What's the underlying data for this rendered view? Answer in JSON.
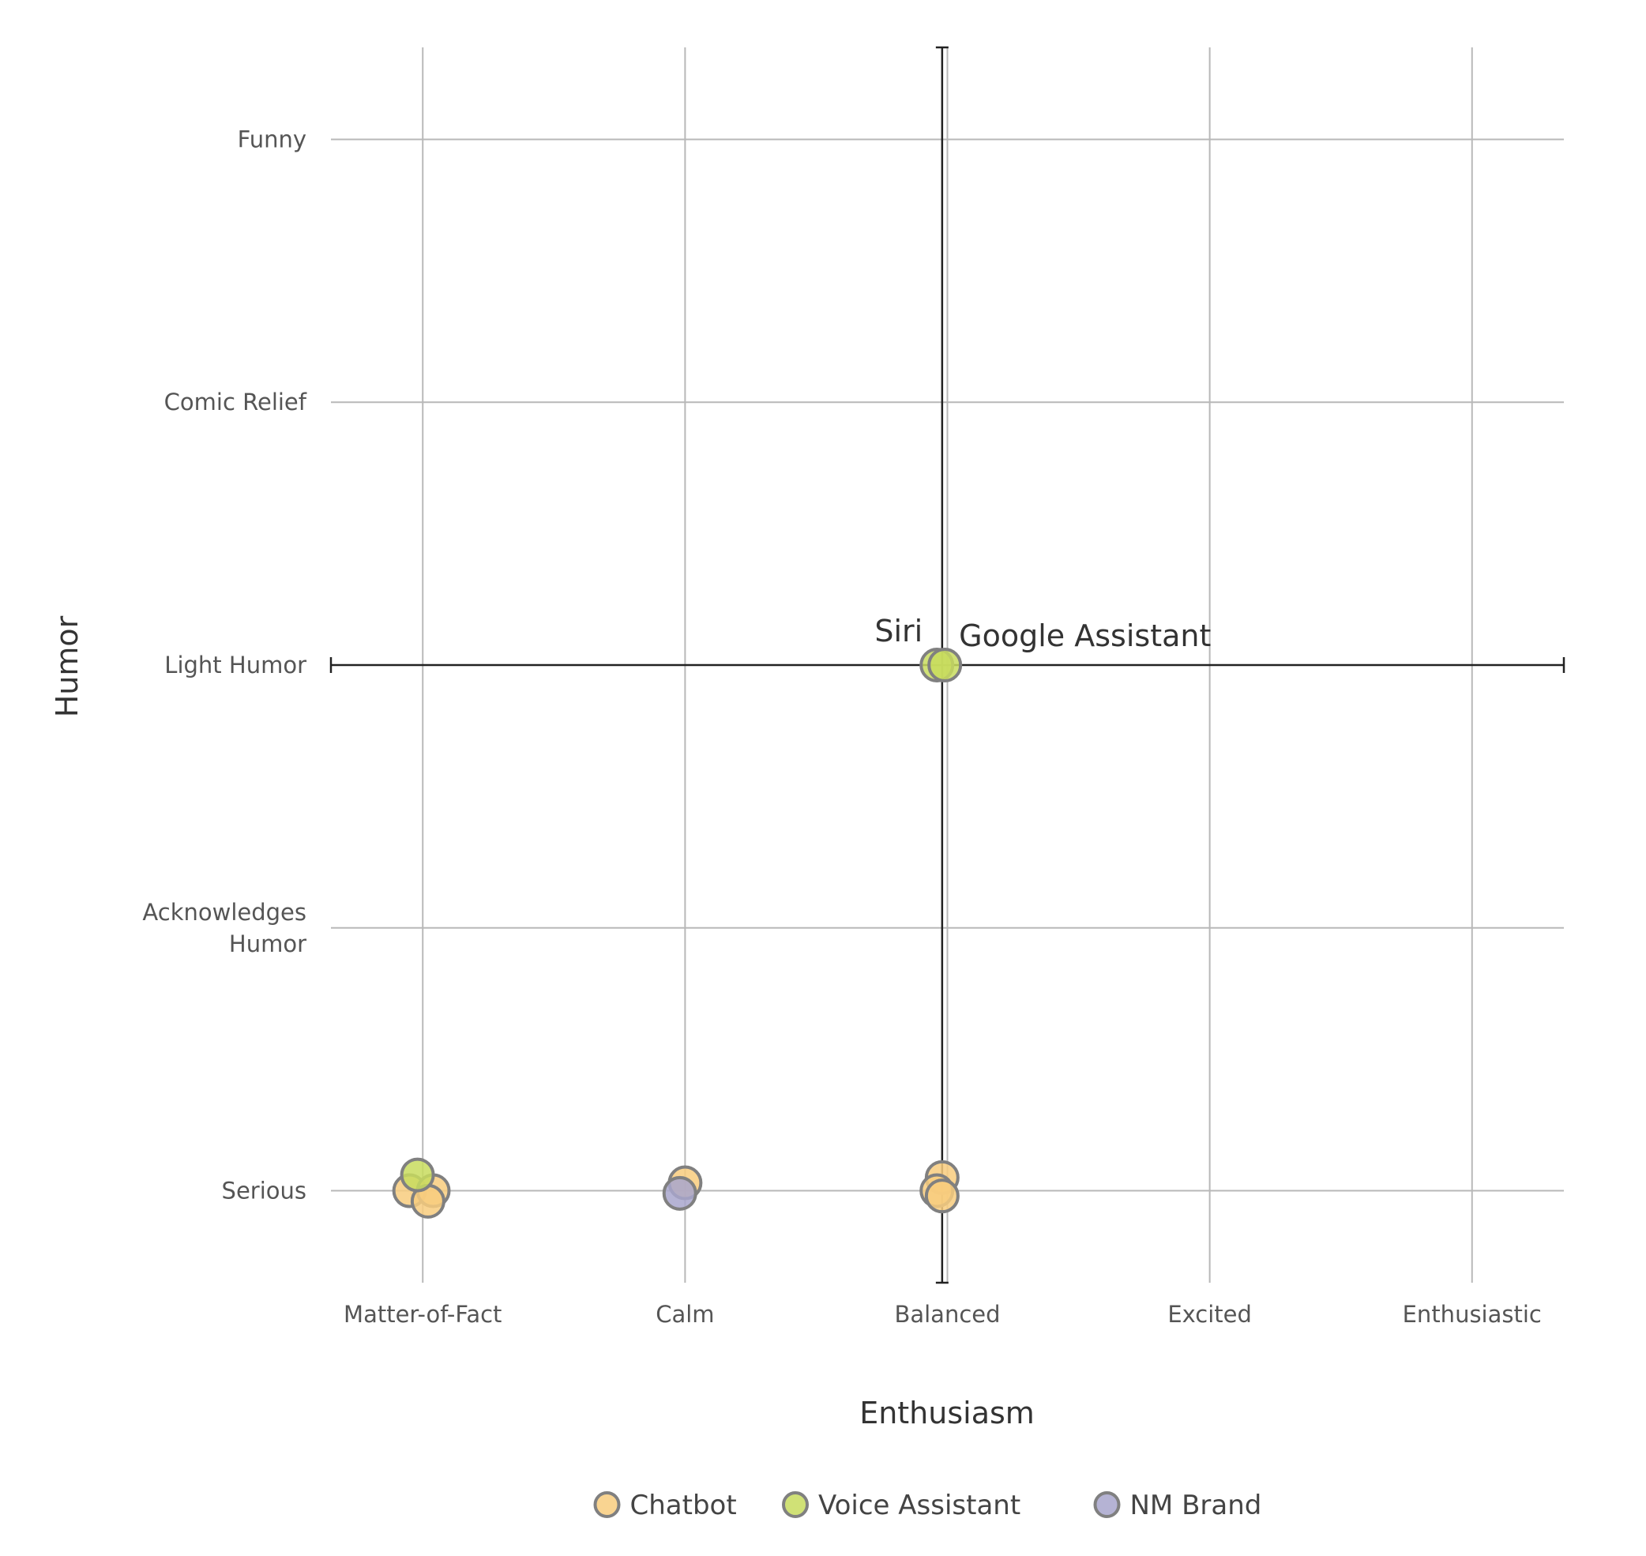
{
  "chart_data": {
    "type": "scatter",
    "title": "",
    "xlabel": "Enthusiasm",
    "ylabel": "Humor",
    "x_categories": [
      "Matter-of-Fact",
      "Calm",
      "Balanced",
      "Excited",
      "Enthusiastic"
    ],
    "y_categories": [
      "Serious",
      "Acknowledges Humor",
      "Light Humor",
      "Comic Relief",
      "Funny"
    ],
    "xlim": [
      -0.35,
      4.35
    ],
    "ylim": [
      -0.35,
      4.35
    ],
    "grid": true,
    "reference_lines": {
      "x": 1.98,
      "y": 2
    },
    "legend_position": "bottom",
    "series": [
      {
        "name": "Chatbot",
        "color": "#f8cc7e",
        "points": [
          {
            "x": -0.05,
            "y": 0.0
          },
          {
            "x": 0.04,
            "y": 0.0
          },
          {
            "x": 0.02,
            "y": -0.04
          },
          {
            "x": 1.0,
            "y": 0.03
          },
          {
            "x": 1.98,
            "y": 0.05
          },
          {
            "x": 1.96,
            "y": 0.0
          },
          {
            "x": 1.98,
            "y": -0.02
          }
        ]
      },
      {
        "name": "Voice Assistant",
        "color": "#c8dc5e",
        "points": [
          {
            "x": 1.96,
            "y": 2.0,
            "label": "Siri"
          },
          {
            "x": 1.99,
            "y": 2.0,
            "label": "Google Assistant"
          },
          {
            "x": -0.02,
            "y": 0.06
          }
        ]
      },
      {
        "name": "NM Brand",
        "color": "#a8a6cc",
        "points": [
          {
            "x": 0.98,
            "y": -0.01
          }
        ]
      }
    ]
  }
}
